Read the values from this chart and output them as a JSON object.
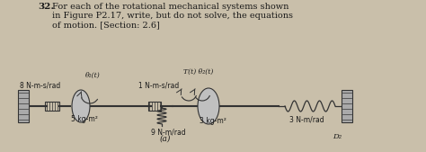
{
  "bg_color": "#c9bfaa",
  "text_color": "#1a1a1a",
  "title_number": "32.",
  "title_line1": "For each of the rotational mechanical systems shown",
  "title_line2": "in Figure P2.17, write, but do not solve, the equations",
  "title_line3": "of motion. [Section: 2.6]",
  "label_8": "8 N-m-s/rad",
  "label_5kg": "5 kg-m²",
  "label_9": "9 N-m/rad",
  "label_1": "1 N-m-s/rad",
  "label_3kg": "3 kg-m²",
  "label_3K": "3 N-m/rad",
  "label_T": "T(t) θ₂(t)",
  "label_theta1": "θ₁(t)",
  "label_a": "(a)",
  "label_D2": "D₂",
  "wall_color": "#888888",
  "shaft_color": "#444444",
  "component_color": "#555555",
  "line_color": "#333333"
}
